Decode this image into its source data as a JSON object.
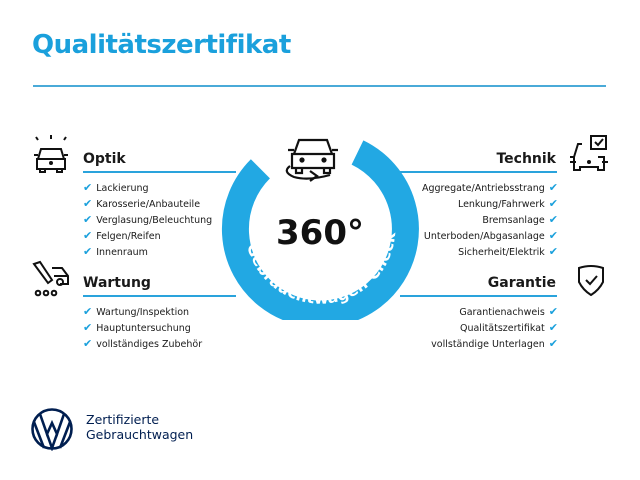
{
  "title": "Qualitätszertifikat",
  "colors": {
    "accent": "#1aa0dc",
    "brand_navy": "#001e50"
  },
  "badge": {
    "number": "360°",
    "arc_text": "Gebrauchtwagen-Check",
    "icon": "car-rotate-icon"
  },
  "sections": {
    "optik": {
      "heading": "Optik",
      "icon": "car-lights-icon",
      "items": [
        "Lackierung",
        "Karosserie/Anbauteile",
        "Verglasung/Beleuchtung",
        "Felgen/Reifen",
        "Innenraum"
      ]
    },
    "wartung": {
      "heading": "Wartung",
      "icon": "service-car-wrench-icon",
      "items": [
        "Wartung/Inspektion",
        "Hauptuntersuchung",
        "vollständiges Zubehör"
      ]
    },
    "technik": {
      "heading": "Technik",
      "icon": "car-checklist-icon",
      "items": [
        "Aggregate/Antriebsstrang",
        "Lenkung/Fahrwerk",
        "Bremsanlage",
        "Unterboden/Abgasanlage",
        "Sicherheit/Elektrik"
      ]
    },
    "garantie": {
      "heading": "Garantie",
      "icon": "shield-check-icon",
      "items": [
        "Garantienachweis",
        "Qualitätszertifikat",
        "vollständige Unterlagen"
      ]
    }
  },
  "check_glyph": "✔",
  "footer": {
    "line1": "Zertifizierte",
    "line2": "Gebrauchtwagen",
    "logo": "vw-logo"
  }
}
